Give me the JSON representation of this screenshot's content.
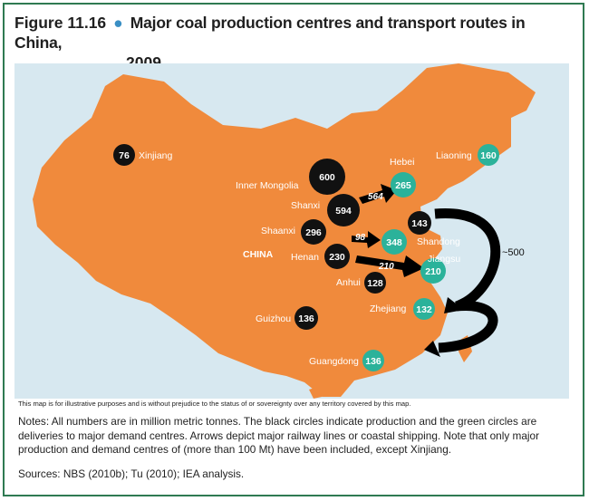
{
  "figure": {
    "number": "Figure 11.16",
    "bullet": "●",
    "title_line1": "Major coal production centres and transport routes in China,",
    "title_line2": "2009"
  },
  "map": {
    "country_label": "CHINA",
    "colors": {
      "land": "#f08a3c",
      "sea": "#d7e8f0",
      "production_circle": "#111111",
      "demand_circle": "#2bb29a",
      "arrow": "#000000"
    },
    "production_centres": [
      {
        "name": "Xinjiang",
        "value": "76",
        "show_label": true
      },
      {
        "name": "Inner Mongolia",
        "value": "600",
        "show_label": true
      },
      {
        "name": "Shanxi",
        "value": "594",
        "show_label": true
      },
      {
        "name": "Shaanxi",
        "value": "296",
        "show_label": true
      },
      {
        "name": "Henan",
        "value": "230",
        "show_label": true
      },
      {
        "name": "Shandong",
        "value": "143",
        "show_label": true
      },
      {
        "name": "Anhui",
        "value": "128",
        "show_label": true
      },
      {
        "name": "Guizhou",
        "value": "136",
        "show_label": true
      }
    ],
    "demand_centres": [
      {
        "name": "Hebei",
        "value": "265"
      },
      {
        "name": "Liaoning",
        "value": "160"
      },
      {
        "name": "Shandong",
        "value": "348"
      },
      {
        "name": "Jiangsu",
        "value": "210"
      },
      {
        "name": "Zhejiang",
        "value": "132"
      },
      {
        "name": "Guangdong",
        "value": "136"
      }
    ],
    "routes": [
      {
        "value": "564"
      },
      {
        "value": "98"
      },
      {
        "value": "210"
      },
      {
        "value": "~500"
      }
    ]
  },
  "disclaimer": "This map is for illustrative purposes and is without prejudice to the status of or sovereignty over any territory covered by this map.",
  "notes": "Notes: All numbers are in million metric tonnes. The black circles indicate production and the green circles are deliveries to major demand centres. Arrows depict major railway lines or coastal shipping. Note that only major production and demand centres of (more than 100 Mt) have been included, except Xinjiang.",
  "sources": "Sources: NBS (2010b); Tu (2010); IEA analysis."
}
